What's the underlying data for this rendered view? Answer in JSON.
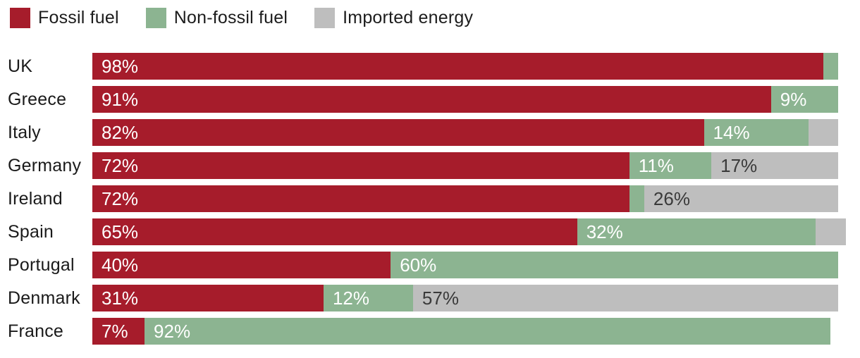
{
  "legend": {
    "items": [
      {
        "key": "fossil",
        "label": "Fossil fuel"
      },
      {
        "key": "non_fossil",
        "label": "Non-fossil fuel"
      },
      {
        "key": "imported",
        "label": "Imported energy"
      }
    ]
  },
  "colors": {
    "fossil": "#A61C2B",
    "non_fossil": "#8CB491",
    "imported": "#BEBEBE",
    "label_on_color": "#FFFFFF",
    "label_on_gray": "#3A3A3A",
    "text": "#1C1C1C"
  },
  "chart_data": {
    "type": "bar",
    "orientation": "horizontal",
    "stacked": true,
    "unit": "%",
    "x_range": [
      0,
      100
    ],
    "grid": false,
    "legend_position": "top-left",
    "series_names": [
      "Fossil fuel",
      "Non-fossil fuel",
      "Imported energy"
    ],
    "categories": [
      "UK",
      "Greece",
      "Italy",
      "Germany",
      "Ireland",
      "Spain",
      "Portugal",
      "Denmark",
      "France"
    ],
    "series": [
      {
        "name": "Fossil fuel",
        "key": "fossil",
        "values": [
          98,
          91,
          82,
          72,
          72,
          65,
          40,
          31,
          7
        ]
      },
      {
        "name": "Non-fossil fuel",
        "key": "non_fossil",
        "values": [
          2,
          9,
          14,
          11,
          2,
          32,
          60,
          12,
          92
        ]
      },
      {
        "name": "Imported energy",
        "key": "imported",
        "values": [
          0,
          0,
          4,
          17,
          26,
          4,
          0,
          57,
          0
        ]
      }
    ],
    "rows": [
      {
        "country": "UK",
        "segments": [
          {
            "key": "fossil",
            "value": 98,
            "label": "98%"
          },
          {
            "key": "non_fossil",
            "value": 2,
            "label": ""
          }
        ]
      },
      {
        "country": "Greece",
        "segments": [
          {
            "key": "fossil",
            "value": 91,
            "label": "91%"
          },
          {
            "key": "non_fossil",
            "value": 9,
            "label": "9%"
          }
        ]
      },
      {
        "country": "Italy",
        "segments": [
          {
            "key": "fossil",
            "value": 82,
            "label": "82%"
          },
          {
            "key": "non_fossil",
            "value": 14,
            "label": "14%"
          },
          {
            "key": "imported",
            "value": 4,
            "label": ""
          }
        ]
      },
      {
        "country": "Germany",
        "segments": [
          {
            "key": "fossil",
            "value": 72,
            "label": "72%"
          },
          {
            "key": "non_fossil",
            "value": 11,
            "label": "11%"
          },
          {
            "key": "imported",
            "value": 17,
            "label": "17%"
          }
        ]
      },
      {
        "country": "Ireland",
        "segments": [
          {
            "key": "fossil",
            "value": 72,
            "label": "72%"
          },
          {
            "key": "non_fossil",
            "value": 2,
            "label": ""
          },
          {
            "key": "imported",
            "value": 26,
            "label": "26%"
          }
        ]
      },
      {
        "country": "Spain",
        "segments": [
          {
            "key": "fossil",
            "value": 65,
            "label": "65%"
          },
          {
            "key": "non_fossil",
            "value": 32,
            "label": "32%"
          },
          {
            "key": "imported",
            "value": 4,
            "label": ""
          }
        ]
      },
      {
        "country": "Portugal",
        "segments": [
          {
            "key": "fossil",
            "value": 40,
            "label": "40%"
          },
          {
            "key": "non_fossil",
            "value": 60,
            "label": "60%"
          }
        ]
      },
      {
        "country": "Denmark",
        "segments": [
          {
            "key": "fossil",
            "value": 31,
            "label": "31%"
          },
          {
            "key": "non_fossil",
            "value": 12,
            "label": "12%"
          },
          {
            "key": "imported",
            "value": 57,
            "label": "57%"
          }
        ]
      },
      {
        "country": "France",
        "segments": [
          {
            "key": "fossil",
            "value": 7,
            "label": "7%"
          },
          {
            "key": "non_fossil",
            "value": 92,
            "label": "92%"
          }
        ]
      }
    ]
  }
}
